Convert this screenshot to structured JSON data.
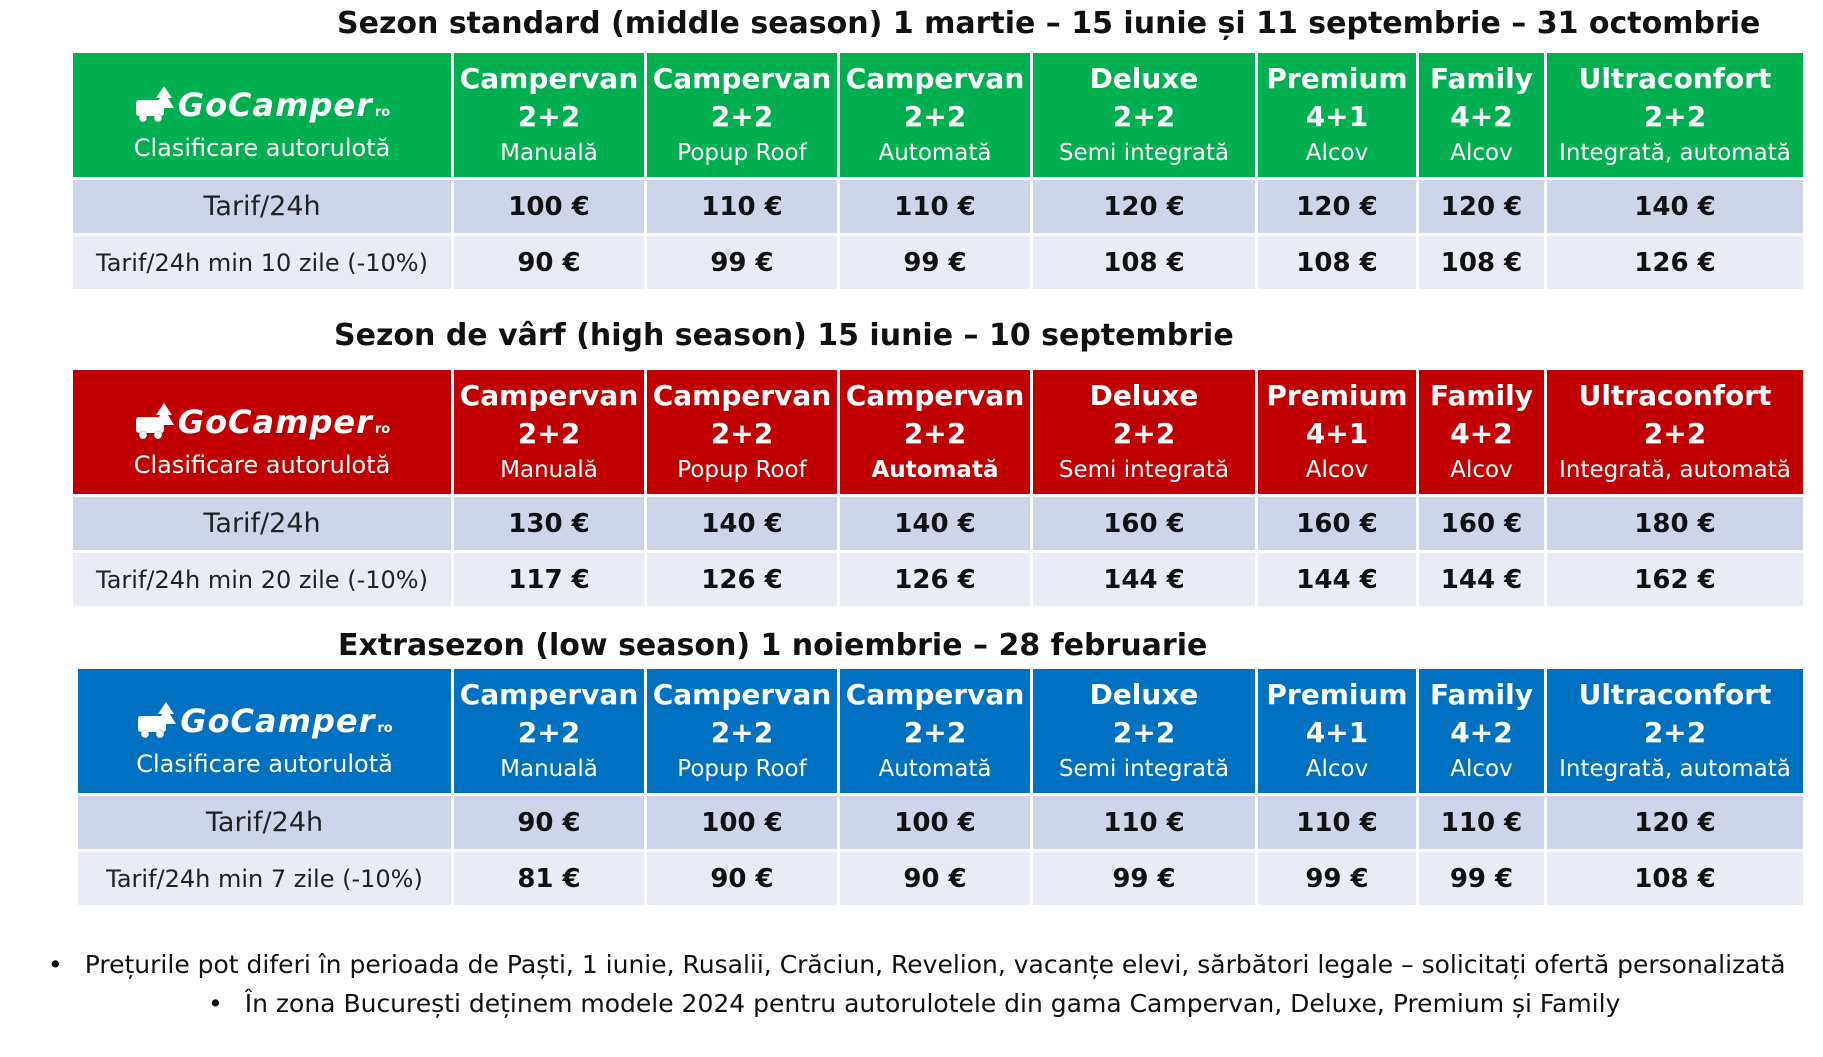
{
  "columns": [
    {
      "name": "Campervan",
      "capacity": "2+2",
      "type": "Manuală"
    },
    {
      "name": "Campervan",
      "capacity": "2+2",
      "type": "Popup Roof"
    },
    {
      "name": "Campervan",
      "capacity": "2+2",
      "type": "Automată"
    },
    {
      "name": "Deluxe",
      "capacity": "2+2",
      "type": "Semi integrată"
    },
    {
      "name": "Premium",
      "capacity": "4+1",
      "type": "Alcov"
    },
    {
      "name": "Family",
      "capacity": "4+2",
      "type": "Alcov"
    },
    {
      "name": "Ultraconfort",
      "capacity": "2+2",
      "type": "Integrată, automată"
    }
  ],
  "logo": {
    "brand": "GoCamper",
    "suffix": "ro",
    "subtitle": "Clasificare autorulotă",
    "icon": "camper-van-tree-icon"
  },
  "sections": [
    {
      "title": "Sezon standard (middle season) 1 martie – 15 iunie  și 11 septembrie – 31 octombrie",
      "color": "#00b050",
      "rows": [
        {
          "label": "Tarif/24h",
          "values": [
            "100 €",
            "110 €",
            "110 €",
            "120 €",
            "120 €",
            "120 €",
            "140 €"
          ]
        },
        {
          "label": "Tarif/24h min 10 zile (-10%)",
          "values": [
            "90 €",
            "99 €",
            "99 €",
            "108 €",
            "108 €",
            "108 €",
            "126 €"
          ]
        }
      ]
    },
    {
      "title": "Sezon de vârf (high season) 15 iunie – 10 septembrie",
      "color": "#c00000",
      "rows": [
        {
          "label": "Tarif/24h",
          "values": [
            "130 €",
            "140 €",
            "140 €",
            "160 €",
            "160 €",
            "160 €",
            "180 €"
          ]
        },
        {
          "label": "Tarif/24h min 20 zile (-10%)",
          "values": [
            "117 €",
            "126 €",
            "126 €",
            "144 €",
            "144 €",
            "144 €",
            "162 €"
          ]
        }
      ]
    },
    {
      "title": "Extrasezon (low season) 1 noiembrie – 28 februarie",
      "color": "#0070c0",
      "rows": [
        {
          "label": "Tarif/24h",
          "values": [
            "90 €",
            "100 €",
            "100 €",
            "110 €",
            "110 €",
            "110 €",
            "120 €"
          ]
        },
        {
          "label": "Tarif/24h min 7 zile (-10%)",
          "values": [
            "81 €",
            "90 €",
            "90 €",
            "99 €",
            "99 €",
            "99 €",
            "108 €"
          ]
        }
      ]
    }
  ],
  "notes": [
    "Prețurile pot diferi în perioada de Paști, 1 iunie, Rusalii, Crăciun, Revelion, vacanțe elevi, sărbători legale – solicitați ofertă personalizată",
    "În zona București deținem  modele 2024 pentru autorulotele din gama Campervan, Deluxe, Premium și Family"
  ]
}
